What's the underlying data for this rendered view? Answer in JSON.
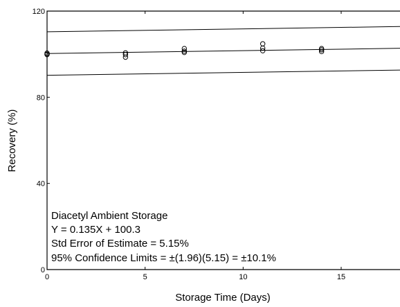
{
  "chart_data": {
    "type": "scatter",
    "xlabel": "Storage Time (Days)",
    "ylabel": "Recovery (%)",
    "xlim": [
      0,
      18
    ],
    "ylim": [
      0,
      120
    ],
    "x_ticks": [
      0,
      5,
      10,
      15
    ],
    "y_ticks": [
      0,
      40,
      80,
      120
    ],
    "x_tick_labels": [
      "0",
      "5",
      "10",
      "15"
    ],
    "y_tick_labels": [
      "0",
      "40",
      "80",
      "120"
    ],
    "grid": false,
    "points": [
      {
        "x": 0,
        "y": 100.0
      },
      {
        "x": 0,
        "y": 100.5
      },
      {
        "x": 0,
        "y": 99.8
      },
      {
        "x": 4,
        "y": 98.6
      },
      {
        "x": 4,
        "y": 99.8
      },
      {
        "x": 4,
        "y": 100.6
      },
      {
        "x": 7,
        "y": 100.8
      },
      {
        "x": 7,
        "y": 101.4
      },
      {
        "x": 7,
        "y": 102.6
      },
      {
        "x": 11,
        "y": 101.6
      },
      {
        "x": 11,
        "y": 102.8
      },
      {
        "x": 11,
        "y": 104.8
      },
      {
        "x": 14,
        "y": 101.2
      },
      {
        "x": 14,
        "y": 102.0
      },
      {
        "x": 14,
        "y": 102.6
      }
    ],
    "fit_line": {
      "slope": 0.135,
      "intercept": 100.3
    },
    "confidence_limit": 10.1,
    "annotation": [
      "Diacetyl Ambient Storage",
      "Y = 0.135X + 100.3",
      "Std Error of Estimate = 5.15%",
      "95% Confidence Limits = ±(1.96)(5.15) = ±10.1%"
    ]
  }
}
